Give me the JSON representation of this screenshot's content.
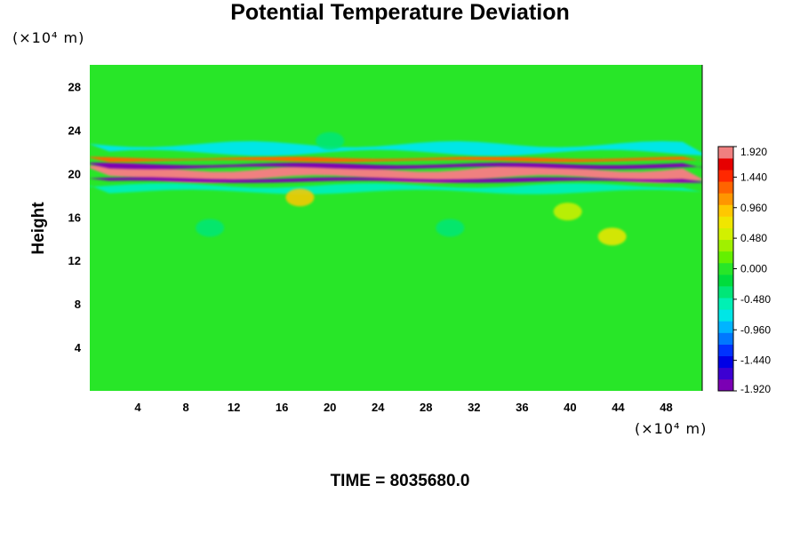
{
  "chart_data": {
    "type": "heatmap",
    "title": "Potential Temperature Deviation",
    "ylabel": "Height",
    "y_unit": "(×10⁴ m)",
    "x_unit": "(×10⁴ m)",
    "x_ticks": [
      4,
      8,
      12,
      16,
      20,
      24,
      28,
      32,
      36,
      40,
      44,
      48
    ],
    "y_ticks": [
      4,
      8,
      12,
      16,
      20,
      24,
      28
    ],
    "xlim": [
      0,
      51
    ],
    "ylim": [
      0,
      30
    ],
    "colorbar": {
      "tick_labels": [
        "1.920",
        "1.440",
        "0.960",
        "0.480",
        "0.000",
        "-0.480",
        "-0.960",
        "-1.440",
        "-1.920"
      ],
      "range": [
        -1.92,
        1.92
      ],
      "colors_low_to_high": [
        "#7b00b4",
        "#3c00d2",
        "#0000e6",
        "#0032ff",
        "#0078ff",
        "#00b4ff",
        "#00e6e6",
        "#00f0b4",
        "#00e678",
        "#00dc3c",
        "#28e628",
        "#64f000",
        "#a0f000",
        "#d2f000",
        "#f0e600",
        "#ffc800",
        "#ff9600",
        "#ff6400",
        "#ff2800",
        "#e60000",
        "#f08080"
      ]
    },
    "field": {
      "background_value": 0.0,
      "features": [
        {
          "kind": "band",
          "y_center": 20.0,
          "thickness": 1.0,
          "value": 1.92
        },
        {
          "kind": "band",
          "y_center": 20.7,
          "thickness": 0.35,
          "value": -1.92
        },
        {
          "kind": "band",
          "y_center": 19.4,
          "thickness": 0.3,
          "value": -1.92
        },
        {
          "kind": "band",
          "y_center": 21.3,
          "thickness": 0.3,
          "value": 1.2
        },
        {
          "kind": "band",
          "y_center": 22.3,
          "thickness": 0.8,
          "value": -0.7
        },
        {
          "kind": "band",
          "y_center": 18.6,
          "thickness": 0.6,
          "value": -0.5
        },
        {
          "kind": "patch",
          "x": 17.5,
          "y": 17.8,
          "value": 0.9
        },
        {
          "kind": "patch",
          "x": 43.5,
          "y": 14.2,
          "value": 0.8
        },
        {
          "kind": "patch",
          "x": 39.8,
          "y": 16.5,
          "value": 0.5
        },
        {
          "kind": "patch",
          "x": 10,
          "y": 15,
          "value": -0.4
        },
        {
          "kind": "patch",
          "x": 30,
          "y": 15,
          "value": -0.4
        },
        {
          "kind": "patch",
          "x": 20,
          "y": 23,
          "value": -0.35
        }
      ]
    },
    "grid": false,
    "legend": "colorbar-right"
  },
  "footer": {
    "time_label": "TIME = 8035680.0"
  }
}
